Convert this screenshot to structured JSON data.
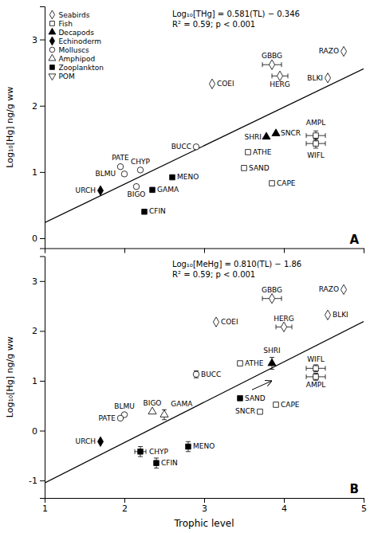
{
  "chart_data": [
    {
      "type": "scatter",
      "title": "A",
      "y_label": "Log₁₀[Hg] ng/g ww",
      "xlim": [
        1,
        5
      ],
      "xticks": [
        1,
        2,
        3,
        4,
        5
      ],
      "ylim": [
        -0.15,
        3.5
      ],
      "yticks": [
        0,
        1,
        2,
        3
      ],
      "tick_labels": "y",
      "legend": "upper left",
      "annotations": [
        {
          "text": "Log₁₀[THg] = 0.581(TL) − 0.346"
        },
        {
          "text": "R² = 0.59; p < 0.001"
        }
      ],
      "series": [
        {
          "type": "line",
          "color": "black",
          "x": [
            1,
            5
          ],
          "values": [
            0.235,
            2.559
          ]
        },
        {
          "name": "Seabirds",
          "marker": "diamond",
          "color": "white",
          "x": [
            3.1,
            3.85,
            3.95,
            4.55,
            4.75
          ],
          "values": [
            2.33,
            2.62,
            2.45,
            2.42,
            2.82
          ],
          "labels": [
            "COEI",
            "GBBG",
            "HERG",
            "BLKI",
            "RAZO"
          ],
          "xerr": [
            0,
            0.12,
            0.1,
            0,
            0
          ],
          "yerr": [
            0,
            0,
            0,
            0,
            0
          ]
        },
        {
          "name": "Fish",
          "marker": "square",
          "color": "white",
          "x": [
            3.5,
            3.55,
            3.85,
            4.4,
            4.4
          ],
          "values": [
            1.06,
            1.3,
            0.83,
            1.43,
            1.55
          ],
          "labels": [
            "SAND",
            "ATHE",
            "CAPE",
            "WIFL",
            "AMPL"
          ],
          "xerr": [
            0,
            0,
            0,
            0.12,
            0.12
          ],
          "yerr": [
            0,
            0,
            0,
            0.07,
            0.07
          ]
        },
        {
          "name": "Decapods",
          "marker": "triangle-up",
          "color": "black",
          "x": [
            3.78,
            3.9
          ],
          "values": [
            1.53,
            1.58
          ],
          "labels": [
            "SHRI",
            "SNCR"
          ],
          "xerr": [
            0,
            0
          ],
          "yerr": [
            0,
            0
          ]
        },
        {
          "name": "Echinoderm",
          "marker": "diamond",
          "color": "black",
          "x": [
            1.7
          ],
          "values": [
            0.72
          ],
          "labels": [
            "URCH"
          ],
          "xerr": [
            0
          ],
          "yerr": [
            0
          ]
        },
        {
          "name": "Molluscs",
          "marker": "circle",
          "color": "white",
          "x": [
            2.0,
            1.95,
            2.2,
            2.15,
            2.9
          ],
          "values": [
            0.97,
            1.08,
            1.03,
            0.78,
            1.38
          ],
          "labels": [
            "BLMU",
            "PATE",
            "CHYP",
            "BIGO",
            "BUCC"
          ],
          "xerr": [
            0,
            0,
            0,
            0,
            0
          ],
          "yerr": [
            0,
            0,
            0,
            0,
            0
          ]
        },
        {
          "name": "Amphipod",
          "marker": "triangle-up",
          "color": "white",
          "x": [],
          "values": [],
          "labels": []
        },
        {
          "name": "Zooplankton",
          "marker": "square",
          "color": "black",
          "x": [
            2.25,
            2.35,
            2.6
          ],
          "values": [
            0.4,
            0.73,
            0.92
          ],
          "labels": [
            "CFIN",
            "GAMA",
            "MENO"
          ],
          "xerr": [
            0,
            0,
            0
          ],
          "yerr": [
            0,
            0,
            0
          ]
        },
        {
          "name": "POM",
          "marker": "triangle-down",
          "color": "white",
          "x": [],
          "values": [],
          "labels": []
        }
      ]
    },
    {
      "type": "scatter",
      "title": "B",
      "x_label": "Trophic level",
      "y_label": "Log₁₀[Hg] ng/g ww",
      "xlim": [
        1,
        5
      ],
      "xticks": [
        1,
        2,
        3,
        4,
        5
      ],
      "ylim": [
        -1.35,
        3.5
      ],
      "yticks": [
        -1,
        0,
        1,
        2,
        3
      ],
      "annotations": [
        {
          "text": "Log₁₀[MeHg] = 0.810(TL) − 1.86"
        },
        {
          "text": "R² = 0.59; p < 0.001"
        }
      ],
      "arrows": [
        {
          "x": 3.6,
          "y": 0.82,
          "to_x": 3.85,
          "to_y": 1.0
        }
      ],
      "series": [
        {
          "type": "line",
          "color": "black",
          "x": [
            1,
            5
          ],
          "values": [
            -1.05,
            2.19
          ]
        },
        {
          "marker": "diamond",
          "color": "white",
          "x": [
            3.15,
            3.85,
            4.0,
            4.55,
            4.75
          ],
          "values": [
            2.18,
            2.65,
            2.08,
            2.32,
            2.83
          ],
          "labels": [
            "COEI",
            "GBBG",
            "HERG",
            "BLKI",
            "RAZO"
          ],
          "xerr": [
            0,
            0.12,
            0.1,
            0,
            0
          ],
          "yerr": [
            0,
            0,
            0,
            0,
            0
          ]
        },
        {
          "marker": "square",
          "color": "white",
          "x": [
            3.45,
            3.7,
            3.9,
            4.4,
            4.4
          ],
          "values": [
            1.35,
            0.38,
            0.52,
            1.25,
            1.08
          ],
          "labels": [
            "ATHE",
            "SNCR",
            "CAPE",
            "WIFL",
            "AMPL"
          ],
          "xerr": [
            0,
            0,
            0,
            0.12,
            0.12
          ],
          "yerr": [
            0,
            0,
            0,
            0.07,
            0.07
          ]
        },
        {
          "marker": "triangle-up",
          "color": "black",
          "x": [
            3.85
          ],
          "values": [
            1.35
          ],
          "labels": [
            "SHRI"
          ],
          "xerr": [
            0
          ],
          "yerr": [
            0.12
          ]
        },
        {
          "marker": "diamond",
          "color": "black",
          "x": [
            1.7
          ],
          "values": [
            -0.22
          ],
          "labels": [
            "URCH"
          ],
          "xerr": [
            0
          ],
          "yerr": [
            0
          ]
        },
        {
          "marker": "circle",
          "color": "white",
          "x": [
            2.0,
            1.95,
            2.9
          ],
          "values": [
            0.32,
            0.25,
            1.13
          ],
          "labels": [
            "BLMU",
            "PATE",
            "BUCC"
          ],
          "xerr": [
            0,
            0,
            0
          ],
          "yerr": [
            0,
            0,
            0.07
          ]
        },
        {
          "marker": "triangle-up",
          "color": "white",
          "x": [
            2.35,
            2.5
          ],
          "values": [
            0.38,
            0.32
          ],
          "labels": [
            "BIGO",
            "GAMA"
          ],
          "xerr": [
            0,
            0
          ],
          "yerr": [
            0,
            0.1
          ]
        },
        {
          "marker": "square",
          "color": "black",
          "x": [
            2.2,
            2.4,
            2.8,
            3.45
          ],
          "values": [
            -0.42,
            -0.65,
            -0.32,
            0.65
          ],
          "labels": [
            "CHYP",
            "CFIN",
            "MENO",
            "SAND"
          ],
          "xerr": [
            0.07,
            0,
            0,
            0
          ],
          "yerr": [
            0.1,
            0.1,
            0.1,
            0
          ]
        }
      ]
    }
  ]
}
